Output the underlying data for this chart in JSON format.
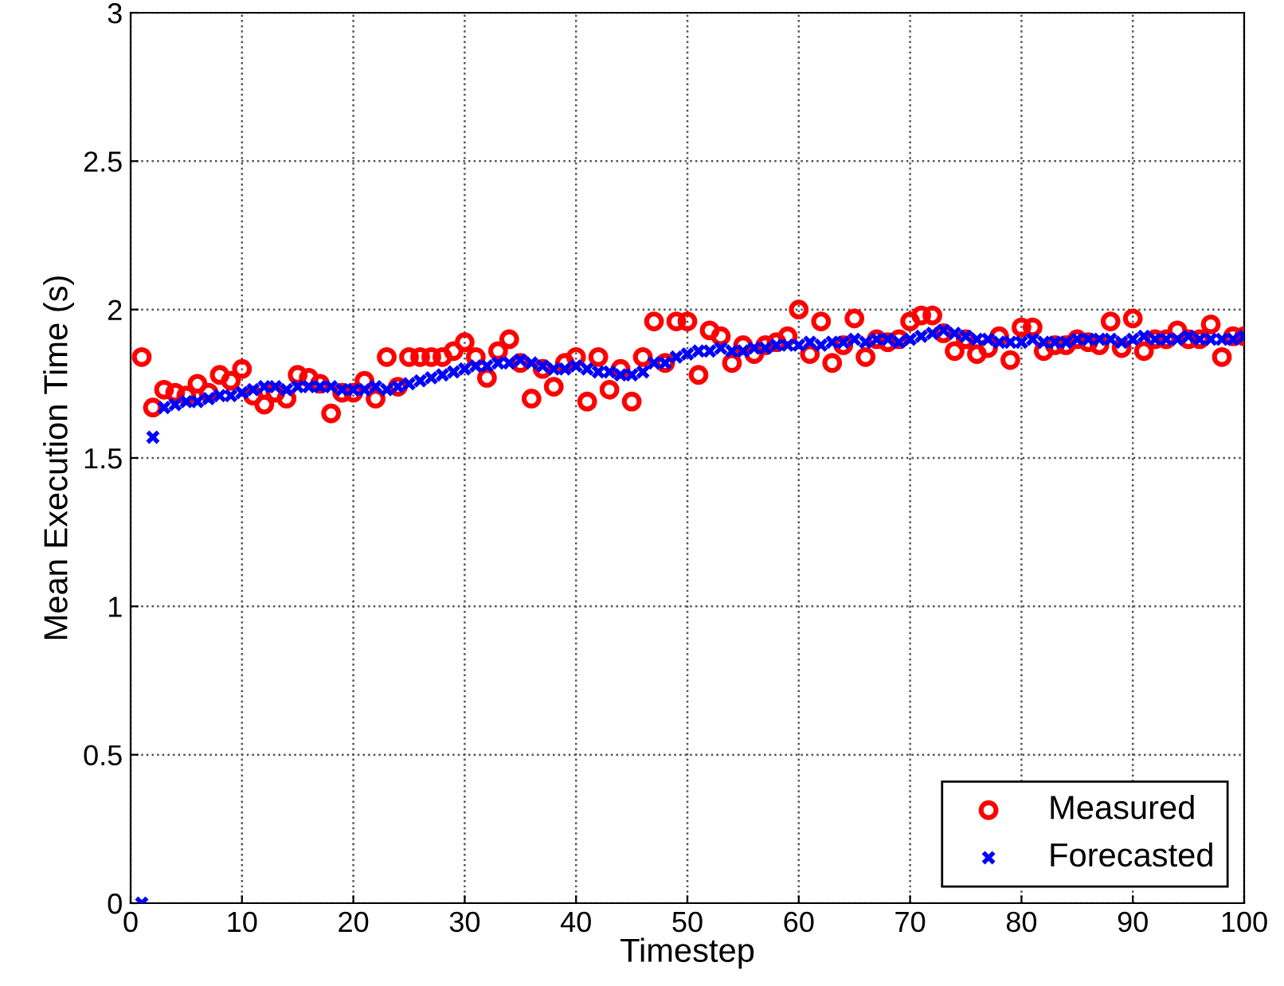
{
  "chart_data": {
    "type": "scatter",
    "xlabel": "Timestep",
    "ylabel": "Mean Execution Time (s)",
    "xlim": [
      0,
      100
    ],
    "ylim": [
      0,
      3
    ],
    "xticks": [
      0,
      10,
      20,
      30,
      40,
      50,
      60,
      70,
      80,
      90,
      100
    ],
    "yticks": [
      0,
      0.5,
      1,
      1.5,
      2,
      2.5,
      3
    ],
    "grid": true,
    "legend": "bottom right",
    "x": [
      1,
      2,
      3,
      4,
      5,
      6,
      7,
      8,
      9,
      10,
      11,
      12,
      13,
      14,
      15,
      16,
      17,
      18,
      19,
      20,
      21,
      22,
      23,
      24,
      25,
      26,
      27,
      28,
      29,
      30,
      31,
      32,
      33,
      34,
      35,
      36,
      37,
      38,
      39,
      40,
      41,
      42,
      43,
      44,
      45,
      46,
      47,
      48,
      49,
      50,
      51,
      52,
      53,
      54,
      55,
      56,
      57,
      58,
      59,
      60,
      61,
      62,
      63,
      64,
      65,
      66,
      67,
      68,
      69,
      70,
      71,
      72,
      73,
      74,
      75,
      76,
      77,
      78,
      79,
      80,
      81,
      82,
      83,
      84,
      85,
      86,
      87,
      88,
      89,
      90,
      91,
      92,
      93,
      94,
      95,
      96,
      97,
      98,
      99,
      100
    ],
    "series": [
      {
        "name": "Measured",
        "color": "#ff0000",
        "marker": "circle",
        "values": [
          1.84,
          1.67,
          1.73,
          1.72,
          1.71,
          1.75,
          1.72,
          1.78,
          1.76,
          1.8,
          1.71,
          1.68,
          1.72,
          1.7,
          1.78,
          1.77,
          1.75,
          1.65,
          1.72,
          1.72,
          1.76,
          1.7,
          1.84,
          1.74,
          1.84,
          1.84,
          1.84,
          1.84,
          1.86,
          1.89,
          1.84,
          1.77,
          1.86,
          1.9,
          1.82,
          1.7,
          1.8,
          1.74,
          1.82,
          1.84,
          1.69,
          1.84,
          1.73,
          1.8,
          1.69,
          1.84,
          1.96,
          1.82,
          1.96,
          1.96,
          1.78,
          1.93,
          1.91,
          1.82,
          1.88,
          1.85,
          1.88,
          1.89,
          1.91,
          2.0,
          1.85,
          1.96,
          1.82,
          1.88,
          1.97,
          1.84,
          1.9,
          1.89,
          1.9,
          1.96,
          1.98,
          1.98,
          1.92,
          1.86,
          1.9,
          1.85,
          1.87,
          1.91,
          1.83,
          1.94,
          1.94,
          1.86,
          1.88,
          1.88,
          1.9,
          1.89,
          1.88,
          1.96,
          1.87,
          1.97,
          1.86,
          1.9,
          1.9,
          1.93,
          1.9,
          1.9,
          1.95,
          1.84,
          1.91,
          1.91
        ]
      },
      {
        "name": "Forecasted",
        "color": "#0000ff",
        "marker": "cross",
        "values": [
          0,
          1.57,
          1.67,
          1.68,
          1.69,
          1.69,
          1.7,
          1.71,
          1.71,
          1.72,
          1.73,
          1.74,
          1.74,
          1.73,
          1.74,
          1.74,
          1.74,
          1.74,
          1.73,
          1.73,
          1.73,
          1.74,
          1.73,
          1.74,
          1.75,
          1.76,
          1.77,
          1.78,
          1.79,
          1.8,
          1.81,
          1.81,
          1.82,
          1.82,
          1.83,
          1.82,
          1.81,
          1.8,
          1.8,
          1.81,
          1.8,
          1.79,
          1.79,
          1.78,
          1.78,
          1.79,
          1.82,
          1.82,
          1.84,
          1.85,
          1.86,
          1.86,
          1.87,
          1.86,
          1.86,
          1.87,
          1.87,
          1.88,
          1.88,
          1.88,
          1.89,
          1.88,
          1.89,
          1.89,
          1.9,
          1.89,
          1.9,
          1.9,
          1.89,
          1.9,
          1.91,
          1.92,
          1.93,
          1.92,
          1.91,
          1.9,
          1.9,
          1.89,
          1.89,
          1.89,
          1.9,
          1.89,
          1.89,
          1.89,
          1.9,
          1.9,
          1.9,
          1.9,
          1.89,
          1.9,
          1.91,
          1.9,
          1.9,
          1.9,
          1.91,
          1.9,
          1.9,
          1.9,
          1.9,
          1.91
        ]
      }
    ]
  }
}
